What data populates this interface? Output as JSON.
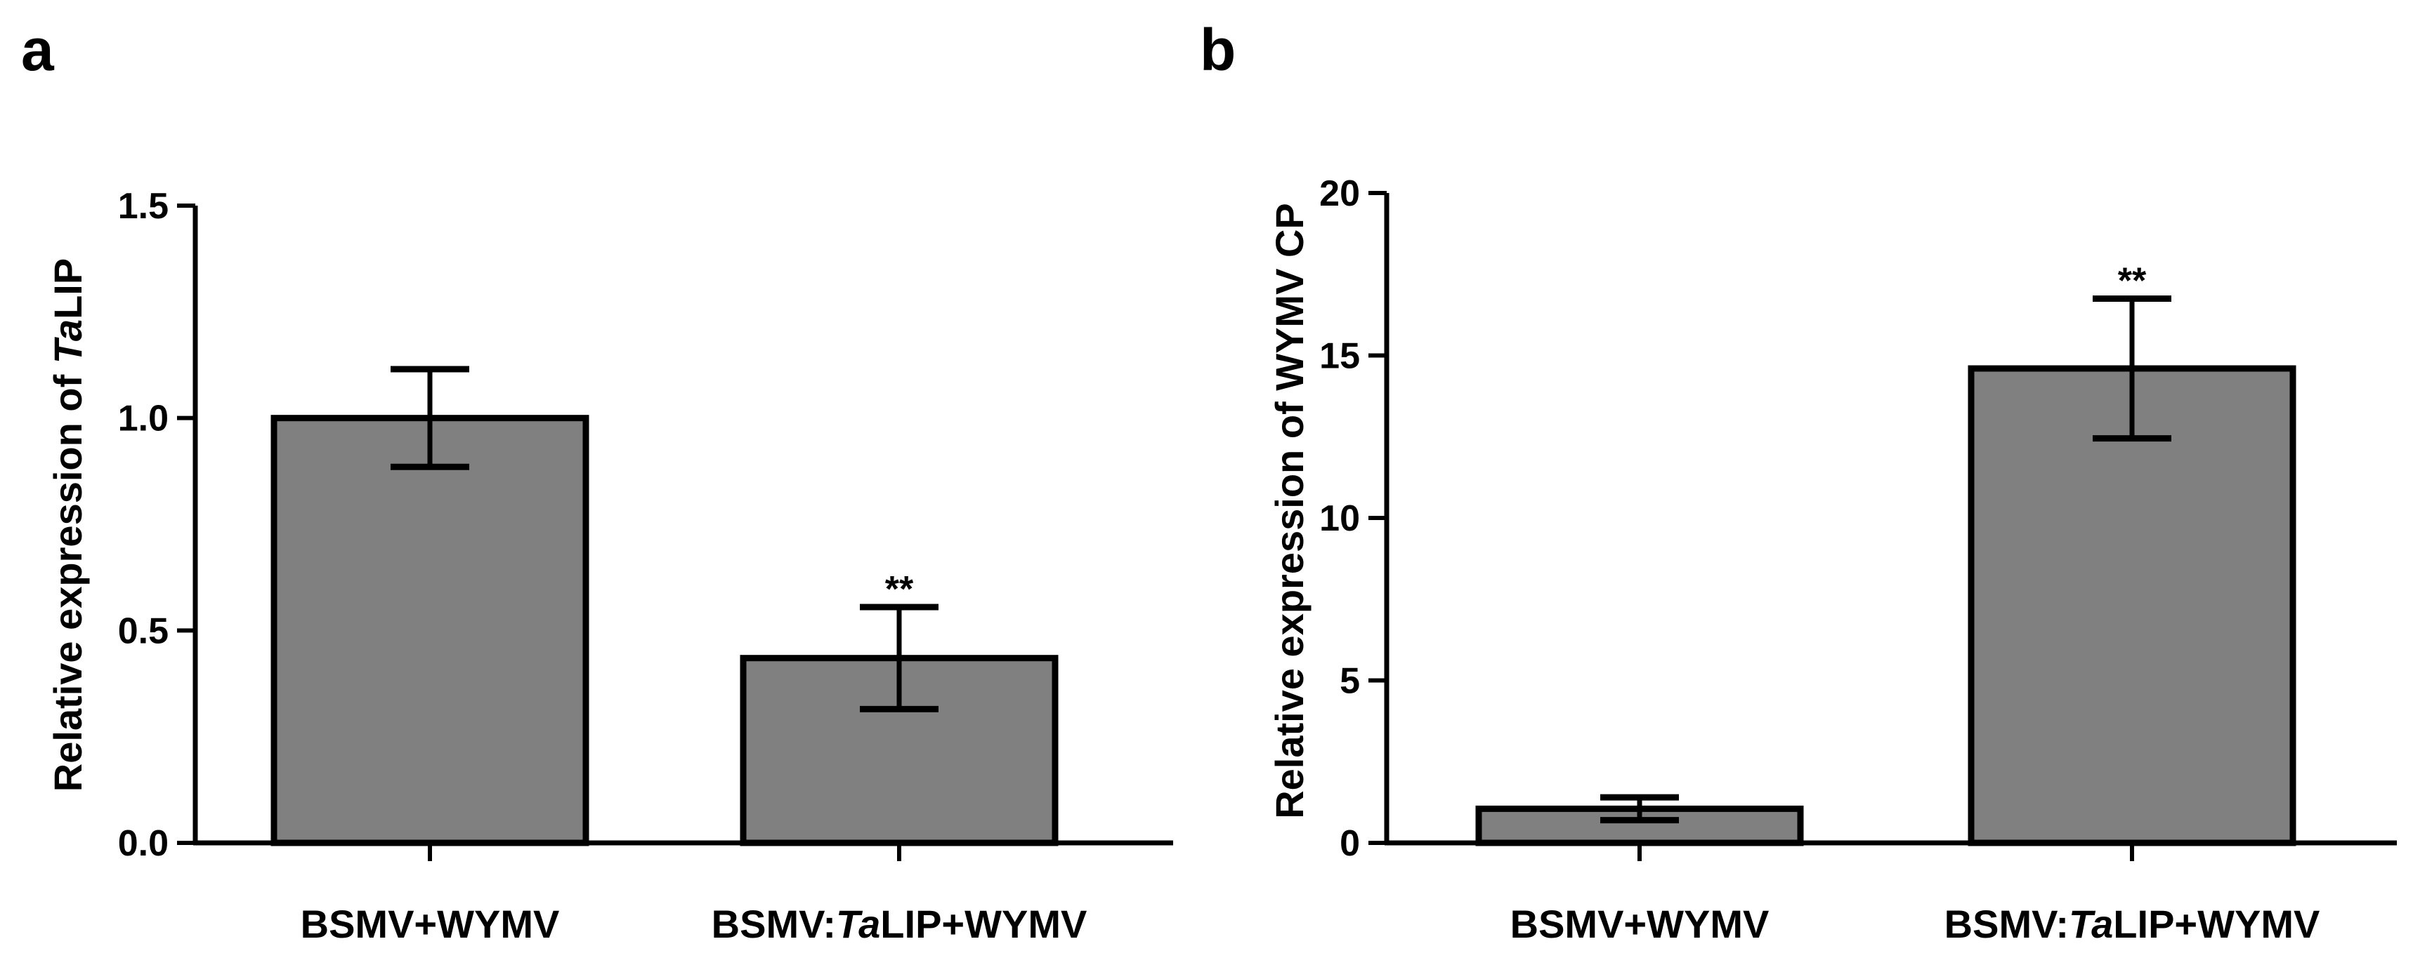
{
  "colors": {
    "bar_fill": "#808080",
    "stroke": "#000000",
    "background": "#ffffff"
  },
  "chart_data": [
    {
      "type": "bar",
      "panel": "a",
      "title": "",
      "xlabel": "",
      "ylabel": {
        "prefix": "Relative expression of ",
        "italic": "Ta",
        "suffix": "LIP"
      },
      "categories": [
        {
          "parts": [
            {
              "text": "BSMV+WYMV",
              "italic": false
            }
          ]
        },
        {
          "parts": [
            {
              "text": "BSMV:",
              "italic": false
            },
            {
              "text": "Ta",
              "italic": true
            },
            {
              "text": "LIP+WYMV",
              "italic": false
            }
          ]
        }
      ],
      "values": [
        1.0,
        0.435
      ],
      "errors": [
        0.115,
        0.12
      ],
      "significance": [
        "",
        "**"
      ],
      "ylim": [
        0,
        1.5
      ],
      "yticks": [
        0,
        0.5,
        1.0,
        1.5
      ],
      "ytick_labels": [
        "0.0",
        "0.5",
        "1.0",
        "1.5"
      ],
      "grid": false,
      "legend": "none"
    },
    {
      "type": "bar",
      "panel": "b",
      "title": "",
      "xlabel": "",
      "ylabel": {
        "prefix": "Relative expression of WYMV CP",
        "italic": "",
        "suffix": ""
      },
      "categories": [
        {
          "parts": [
            {
              "text": "BSMV+WYMV",
              "italic": false
            }
          ]
        },
        {
          "parts": [
            {
              "text": "BSMV:",
              "italic": false
            },
            {
              "text": "Ta",
              "italic": true
            },
            {
              "text": "LIP+WYMV",
              "italic": false
            }
          ]
        }
      ],
      "values": [
        1.05,
        14.6
      ],
      "errors": [
        0.35,
        2.15
      ],
      "significance": [
        "",
        "**"
      ],
      "ylim": [
        0,
        20
      ],
      "yticks": [
        0,
        5,
        10,
        15,
        20
      ],
      "ytick_labels": [
        "0",
        "5",
        "10",
        "15",
        "20"
      ],
      "grid": false,
      "legend": "none"
    }
  ]
}
